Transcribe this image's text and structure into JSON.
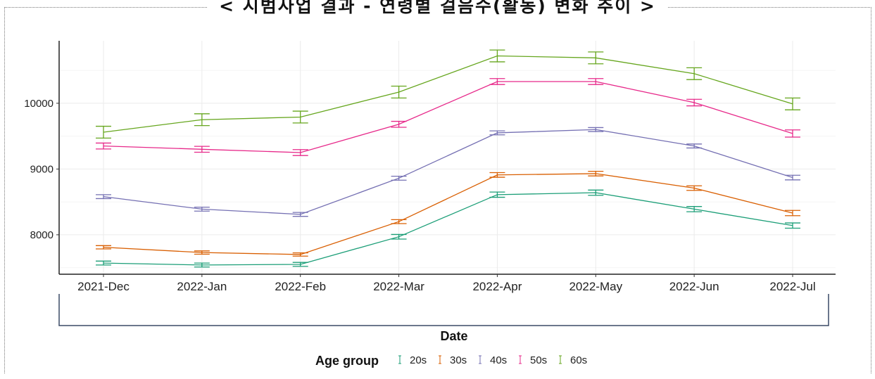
{
  "page": {
    "title": "<  시범사업 결과 - 연령별 걸음수(활동) 변화 추이  >"
  },
  "chart_data": {
    "type": "line",
    "title": "",
    "xlabel": "Date",
    "ylabel": "",
    "categories": [
      "2021-Dec",
      "2022-Jan",
      "2022-Feb",
      "2022-Mar",
      "2022-Apr",
      "2022-May",
      "2022-Jun",
      "2022-Jul"
    ],
    "yticks": [
      8000,
      9000,
      10000
    ],
    "ylim": [
      7400,
      10950
    ],
    "grid": true,
    "error_bars": true,
    "legend": {
      "title": "Age group",
      "position": "bottom"
    },
    "series": [
      {
        "name": "20s",
        "color": "#1b9e77",
        "values": [
          7570,
          7540,
          7550,
          7970,
          8610,
          8640,
          8390,
          8140
        ],
        "errors": [
          30,
          30,
          30,
          35,
          40,
          40,
          40,
          40
        ]
      },
      {
        "name": "30s",
        "color": "#d95f02",
        "values": [
          7810,
          7730,
          7700,
          8200,
          8910,
          8930,
          8710,
          8330
        ],
        "errors": [
          25,
          25,
          25,
          30,
          35,
          35,
          35,
          40
        ]
      },
      {
        "name": "40s",
        "color": "#7570b3",
        "values": [
          8580,
          8390,
          8310,
          8860,
          9550,
          9600,
          9350,
          8870
        ],
        "errors": [
          30,
          30,
          30,
          30,
          30,
          30,
          30,
          35
        ]
      },
      {
        "name": "50s",
        "color": "#e7298a",
        "values": [
          9350,
          9300,
          9250,
          9680,
          10330,
          10330,
          10010,
          9540
        ],
        "errors": [
          45,
          45,
          45,
          45,
          45,
          45,
          50,
          55
        ]
      },
      {
        "name": "60s",
        "color": "#66a61e",
        "values": [
          9560,
          9750,
          9790,
          10170,
          10720,
          10690,
          10450,
          9990
        ],
        "errors": [
          90,
          90,
          90,
          90,
          90,
          90,
          90,
          90
        ]
      }
    ]
  }
}
